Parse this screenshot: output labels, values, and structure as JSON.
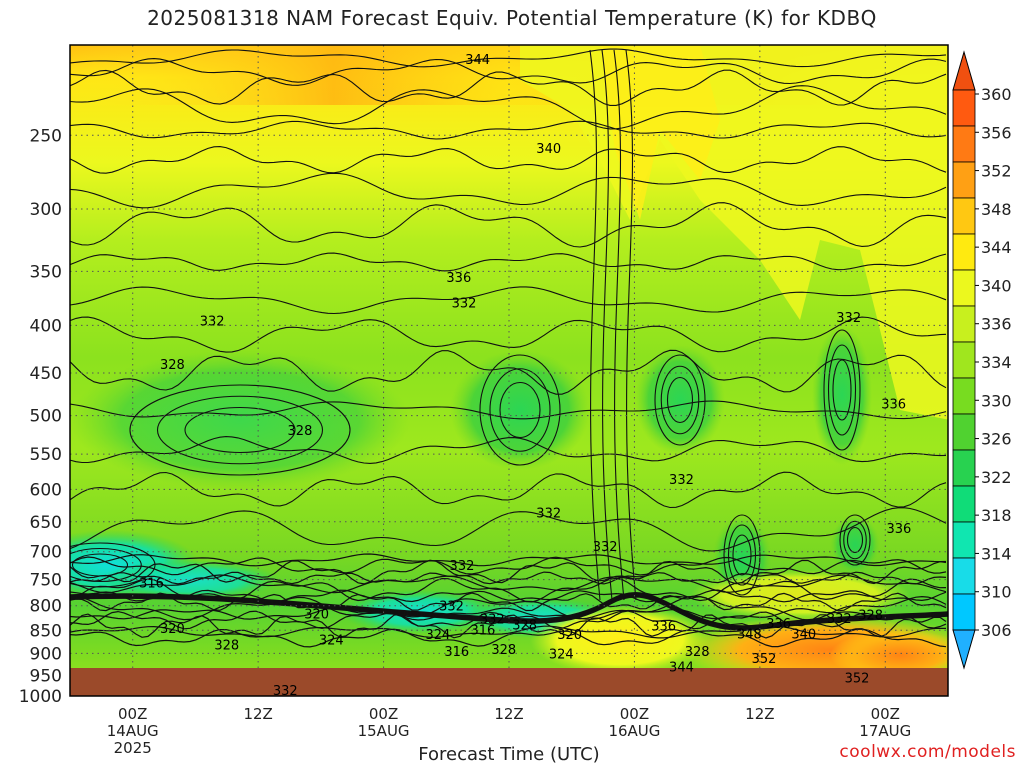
{
  "title": "2025081318 NAM Forecast Equiv. Potential Temperature (K) for KDBQ",
  "xlabel": "Forecast Time (UTC)",
  "credit": "coolwx.com/models",
  "colors": {
    "ground": "#9b4a2a",
    "grid": "#555555",
    "contour": "#111111"
  },
  "chart_data": {
    "type": "heatmap",
    "title": "2025081318 NAM Forecast Equiv. Potential Temperature (K) for KDBQ",
    "xlabel": "Forecast Time (UTC)",
    "ylabel": "",
    "y_scale": "log-pressure",
    "ylim": [
      1000,
      200
    ],
    "xlim_hours": [
      0,
      84
    ],
    "y_ticks": [
      {
        "value": 250,
        "label": "250"
      },
      {
        "value": 300,
        "label": "300"
      },
      {
        "value": 350,
        "label": "350"
      },
      {
        "value": 400,
        "label": "400"
      },
      {
        "value": 450,
        "label": "450"
      },
      {
        "value": 500,
        "label": "500"
      },
      {
        "value": 550,
        "label": "550"
      },
      {
        "value": 600,
        "label": "600"
      },
      {
        "value": 650,
        "label": "650"
      },
      {
        "value": 700,
        "label": "700"
      },
      {
        "value": 750,
        "label": "750"
      },
      {
        "value": 800,
        "label": "800"
      },
      {
        "value": 850,
        "label": "850"
      },
      {
        "value": 900,
        "label": "900"
      },
      {
        "value": 950,
        "label": "950"
      },
      {
        "value": 1000,
        "label": "1000"
      }
    ],
    "x_ticks": [
      {
        "hour": 6,
        "lines": [
          "00Z",
          "14AUG",
          "2025"
        ]
      },
      {
        "hour": 18,
        "lines": [
          "12Z"
        ]
      },
      {
        "hour": 30,
        "lines": [
          "00Z",
          "15AUG"
        ]
      },
      {
        "hour": 42,
        "lines": [
          "12Z"
        ]
      },
      {
        "hour": 54,
        "lines": [
          "00Z",
          "16AUG"
        ]
      },
      {
        "hour": 66,
        "lines": [
          "12Z"
        ]
      },
      {
        "hour": 78,
        "lines": [
          "00Z",
          "17AUG"
        ]
      }
    ],
    "colorbar": {
      "levels": [
        306,
        310,
        314,
        318,
        322,
        326,
        330,
        334,
        336,
        340,
        344,
        348,
        352,
        356,
        360
      ],
      "labels": [
        "306",
        "310",
        "314",
        "318",
        "322",
        "326",
        "330",
        "334",
        "336",
        "340",
        "344",
        "348",
        "352",
        "356",
        "360"
      ],
      "colors": [
        "#00c8ff",
        "#18dce8",
        "#10e6b0",
        "#10dc78",
        "#28d250",
        "#50d230",
        "#78dc20",
        "#a0e61e",
        "#c8f01e",
        "#ecf81e",
        "#ffea10",
        "#ffc812",
        "#ffa014",
        "#ff7a14",
        "#ff5a10"
      ],
      "extend": "both",
      "under_color": "#20b0ff",
      "over_color": "#f05010"
    },
    "contour_labels": [
      {
        "text": "344",
        "hour": 39,
        "p": 207
      },
      {
        "text": "340",
        "hour": 45.8,
        "p": 258
      },
      {
        "text": "336",
        "hour": 37.2,
        "p": 355
      },
      {
        "text": "332",
        "hour": 37.7,
        "p": 378
      },
      {
        "text": "332",
        "hour": 13.6,
        "p": 395
      },
      {
        "text": "328",
        "hour": 9.8,
        "p": 440
      },
      {
        "text": "328",
        "hour": 22,
        "p": 518
      },
      {
        "text": "332",
        "hour": 45.8,
        "p": 635
      },
      {
        "text": "332",
        "hour": 51.2,
        "p": 690
      },
      {
        "text": "332",
        "hour": 37.5,
        "p": 723
      },
      {
        "text": "332",
        "hour": 58.5,
        "p": 585
      },
      {
        "text": "336",
        "hour": 79.3,
        "p": 660
      },
      {
        "text": "336",
        "hour": 78.8,
        "p": 485
      },
      {
        "text": "332",
        "hour": 74.5,
        "p": 392
      },
      {
        "text": "316",
        "hour": 7.8,
        "p": 755
      },
      {
        "text": "320",
        "hour": 23.6,
        "p": 815
      },
      {
        "text": "320",
        "hour": 9.8,
        "p": 845
      },
      {
        "text": "328",
        "hour": 15,
        "p": 880
      },
      {
        "text": "324",
        "hour": 25,
        "p": 870
      },
      {
        "text": "332",
        "hour": 36.5,
        "p": 800
      },
      {
        "text": "332",
        "hour": 40.4,
        "p": 826
      },
      {
        "text": "324",
        "hour": 35.2,
        "p": 858
      },
      {
        "text": "316",
        "hour": 39.5,
        "p": 848
      },
      {
        "text": "328",
        "hour": 43.5,
        "p": 838
      },
      {
        "text": "320",
        "hour": 47.8,
        "p": 858
      },
      {
        "text": "316",
        "hour": 37,
        "p": 895
      },
      {
        "text": "328",
        "hour": 41.5,
        "p": 890
      },
      {
        "text": "324",
        "hour": 47,
        "p": 900
      },
      {
        "text": "336",
        "hour": 56.8,
        "p": 840
      },
      {
        "text": "328",
        "hour": 60,
        "p": 895
      },
      {
        "text": "344",
        "hour": 58.5,
        "p": 930
      },
      {
        "text": "348",
        "hour": 65,
        "p": 857
      },
      {
        "text": "336",
        "hour": 67.8,
        "p": 835
      },
      {
        "text": "340",
        "hour": 70.2,
        "p": 857
      },
      {
        "text": "332",
        "hour": 73.6,
        "p": 825
      },
      {
        "text": "328",
        "hour": 76.6,
        "p": 818
      },
      {
        "text": "352",
        "hour": 66.4,
        "p": 910
      },
      {
        "text": "352",
        "hour": 75.3,
        "p": 955
      },
      {
        "text": "332",
        "hour": 20.6,
        "p": 985
      }
    ]
  }
}
